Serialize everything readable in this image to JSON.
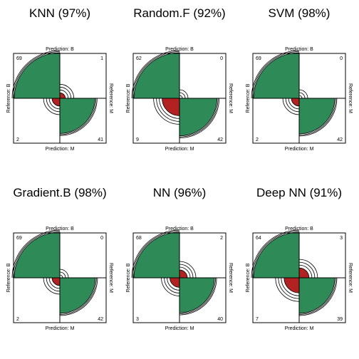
{
  "colors": {
    "background": "#ffffff",
    "correct": "#2e8b57",
    "incorrect": "#b22222",
    "outline": "#000000"
  },
  "chart_data": [
    {
      "type": "fourfold",
      "title": "KNN (97%)",
      "top_label": "Prediction: B",
      "bottom_label": "Prediction: M",
      "left_label": "Reference: B",
      "right_label": "Reference: M",
      "counts": {
        "tl": 69,
        "tr": 1,
        "bl": 2,
        "br": 41
      }
    },
    {
      "type": "fourfold",
      "title": "Random.F (92%)",
      "top_label": "Prediction: B",
      "bottom_label": "Prediction: M",
      "left_label": "Reference: B",
      "right_label": "Reference: M",
      "counts": {
        "tl": 62,
        "tr": 0,
        "bl": 9,
        "br": 42
      }
    },
    {
      "type": "fourfold",
      "title": "SVM (98%)",
      "top_label": "Prediction: B",
      "bottom_label": "Prediction: M",
      "left_label": "Reference: B",
      "right_label": "Reference: M",
      "counts": {
        "tl": 69,
        "tr": 0,
        "bl": 2,
        "br": 42
      }
    },
    {
      "type": "fourfold",
      "title": "Gradient.B (98%)",
      "top_label": "Prediction: B",
      "bottom_label": "Prediction: M",
      "left_label": "Reference: B",
      "right_label": "Reference: M",
      "counts": {
        "tl": 69,
        "tr": 0,
        "bl": 2,
        "br": 42
      }
    },
    {
      "type": "fourfold",
      "title": "NN (96%)",
      "top_label": "Prediction: B",
      "bottom_label": "Prediction: M",
      "left_label": "Reference: B",
      "right_label": "Reference: M",
      "counts": {
        "tl": 68,
        "tr": 2,
        "bl": 3,
        "br": 40
      }
    },
    {
      "type": "fourfold",
      "title": "Deep NN (91%)",
      "top_label": "Prediction: B",
      "bottom_label": "Prediction: M",
      "left_label": "Reference: B",
      "right_label": "Reference: M",
      "counts": {
        "tl": 64,
        "tr": 3,
        "bl": 7,
        "br": 39
      }
    }
  ]
}
